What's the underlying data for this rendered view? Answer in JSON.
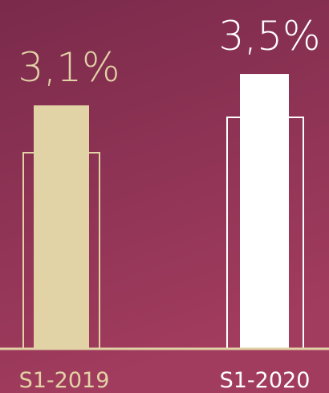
{
  "chart_data": {
    "type": "bar",
    "categories": [
      "S1-2019",
      "S1-2020"
    ],
    "values": [
      3.1,
      3.5
    ],
    "value_labels": [
      "3,1%",
      "3,5%"
    ],
    "colors": [
      "#e2d3a6",
      "#ffffff"
    ]
  }
}
